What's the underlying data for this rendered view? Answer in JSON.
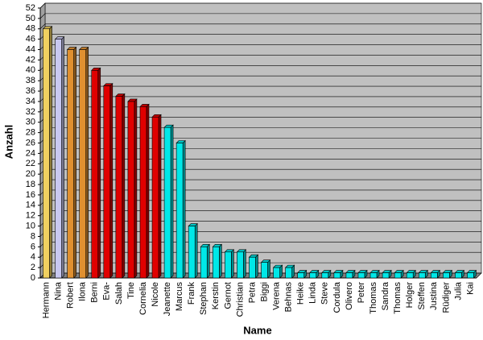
{
  "chart_data": {
    "type": "bar3d",
    "y_label": "Anzahl",
    "x_label": "Name",
    "categories": [
      "Hermann",
      "Nina",
      "Robert",
      "Ilona",
      "Berni",
      "Eva-",
      "Salah",
      "Tine",
      "Cornelia",
      "Nicole",
      "Jeanette",
      "Marcus",
      "Frank",
      "Stephan",
      "Kerstin",
      "Gernot",
      "Christian",
      "Petra",
      "Biggi",
      "Verena",
      "Behnas",
      "Heike",
      "Linda",
      "Steve",
      "Cordula",
      "Olivero",
      "Peter",
      "Thomas",
      "Sandra",
      "Thomas",
      "Holger",
      "Steffen",
      "Justina",
      "Rüdiger",
      "Julia",
      "Kai"
    ],
    "values": [
      48,
      46,
      44,
      44,
      40,
      37,
      35,
      34,
      33,
      31,
      29,
      26,
      10,
      6,
      6,
      5,
      5,
      4,
      3,
      2,
      2,
      1,
      1,
      1,
      1,
      1,
      1,
      1,
      1,
      1,
      1,
      1,
      1,
      1,
      1,
      1
    ],
    "colors": [
      "#f0d060",
      "#c8c8f0",
      "#e09030",
      "#e09030",
      "#e00000",
      "#e00000",
      "#e00000",
      "#e00000",
      "#e00000",
      "#e00000",
      "#00e8e8",
      "#00e8e8",
      "#00e8e8",
      "#00e8e8",
      "#00e8e8",
      "#00e8e8",
      "#00e8e8",
      "#00e8e8",
      "#00e8e8",
      "#00e8e8",
      "#00e8e8",
      "#00e8e8",
      "#00e8e8",
      "#00e8e8",
      "#00e8e8",
      "#00e8e8",
      "#00e8e8",
      "#00e8e8",
      "#00e8e8",
      "#00e8e8",
      "#00e8e8",
      "#00e8e8",
      "#00e8e8",
      "#00e8e8",
      "#00e8e8",
      "#00e8e8"
    ],
    "ylim": [
      0,
      52
    ],
    "yticks": [
      0,
      2,
      4,
      6,
      8,
      10,
      12,
      14,
      16,
      18,
      20,
      22,
      24,
      26,
      28,
      30,
      32,
      34,
      36,
      38,
      40,
      42,
      44,
      46,
      48,
      50,
      52
    ],
    "grid": true
  }
}
